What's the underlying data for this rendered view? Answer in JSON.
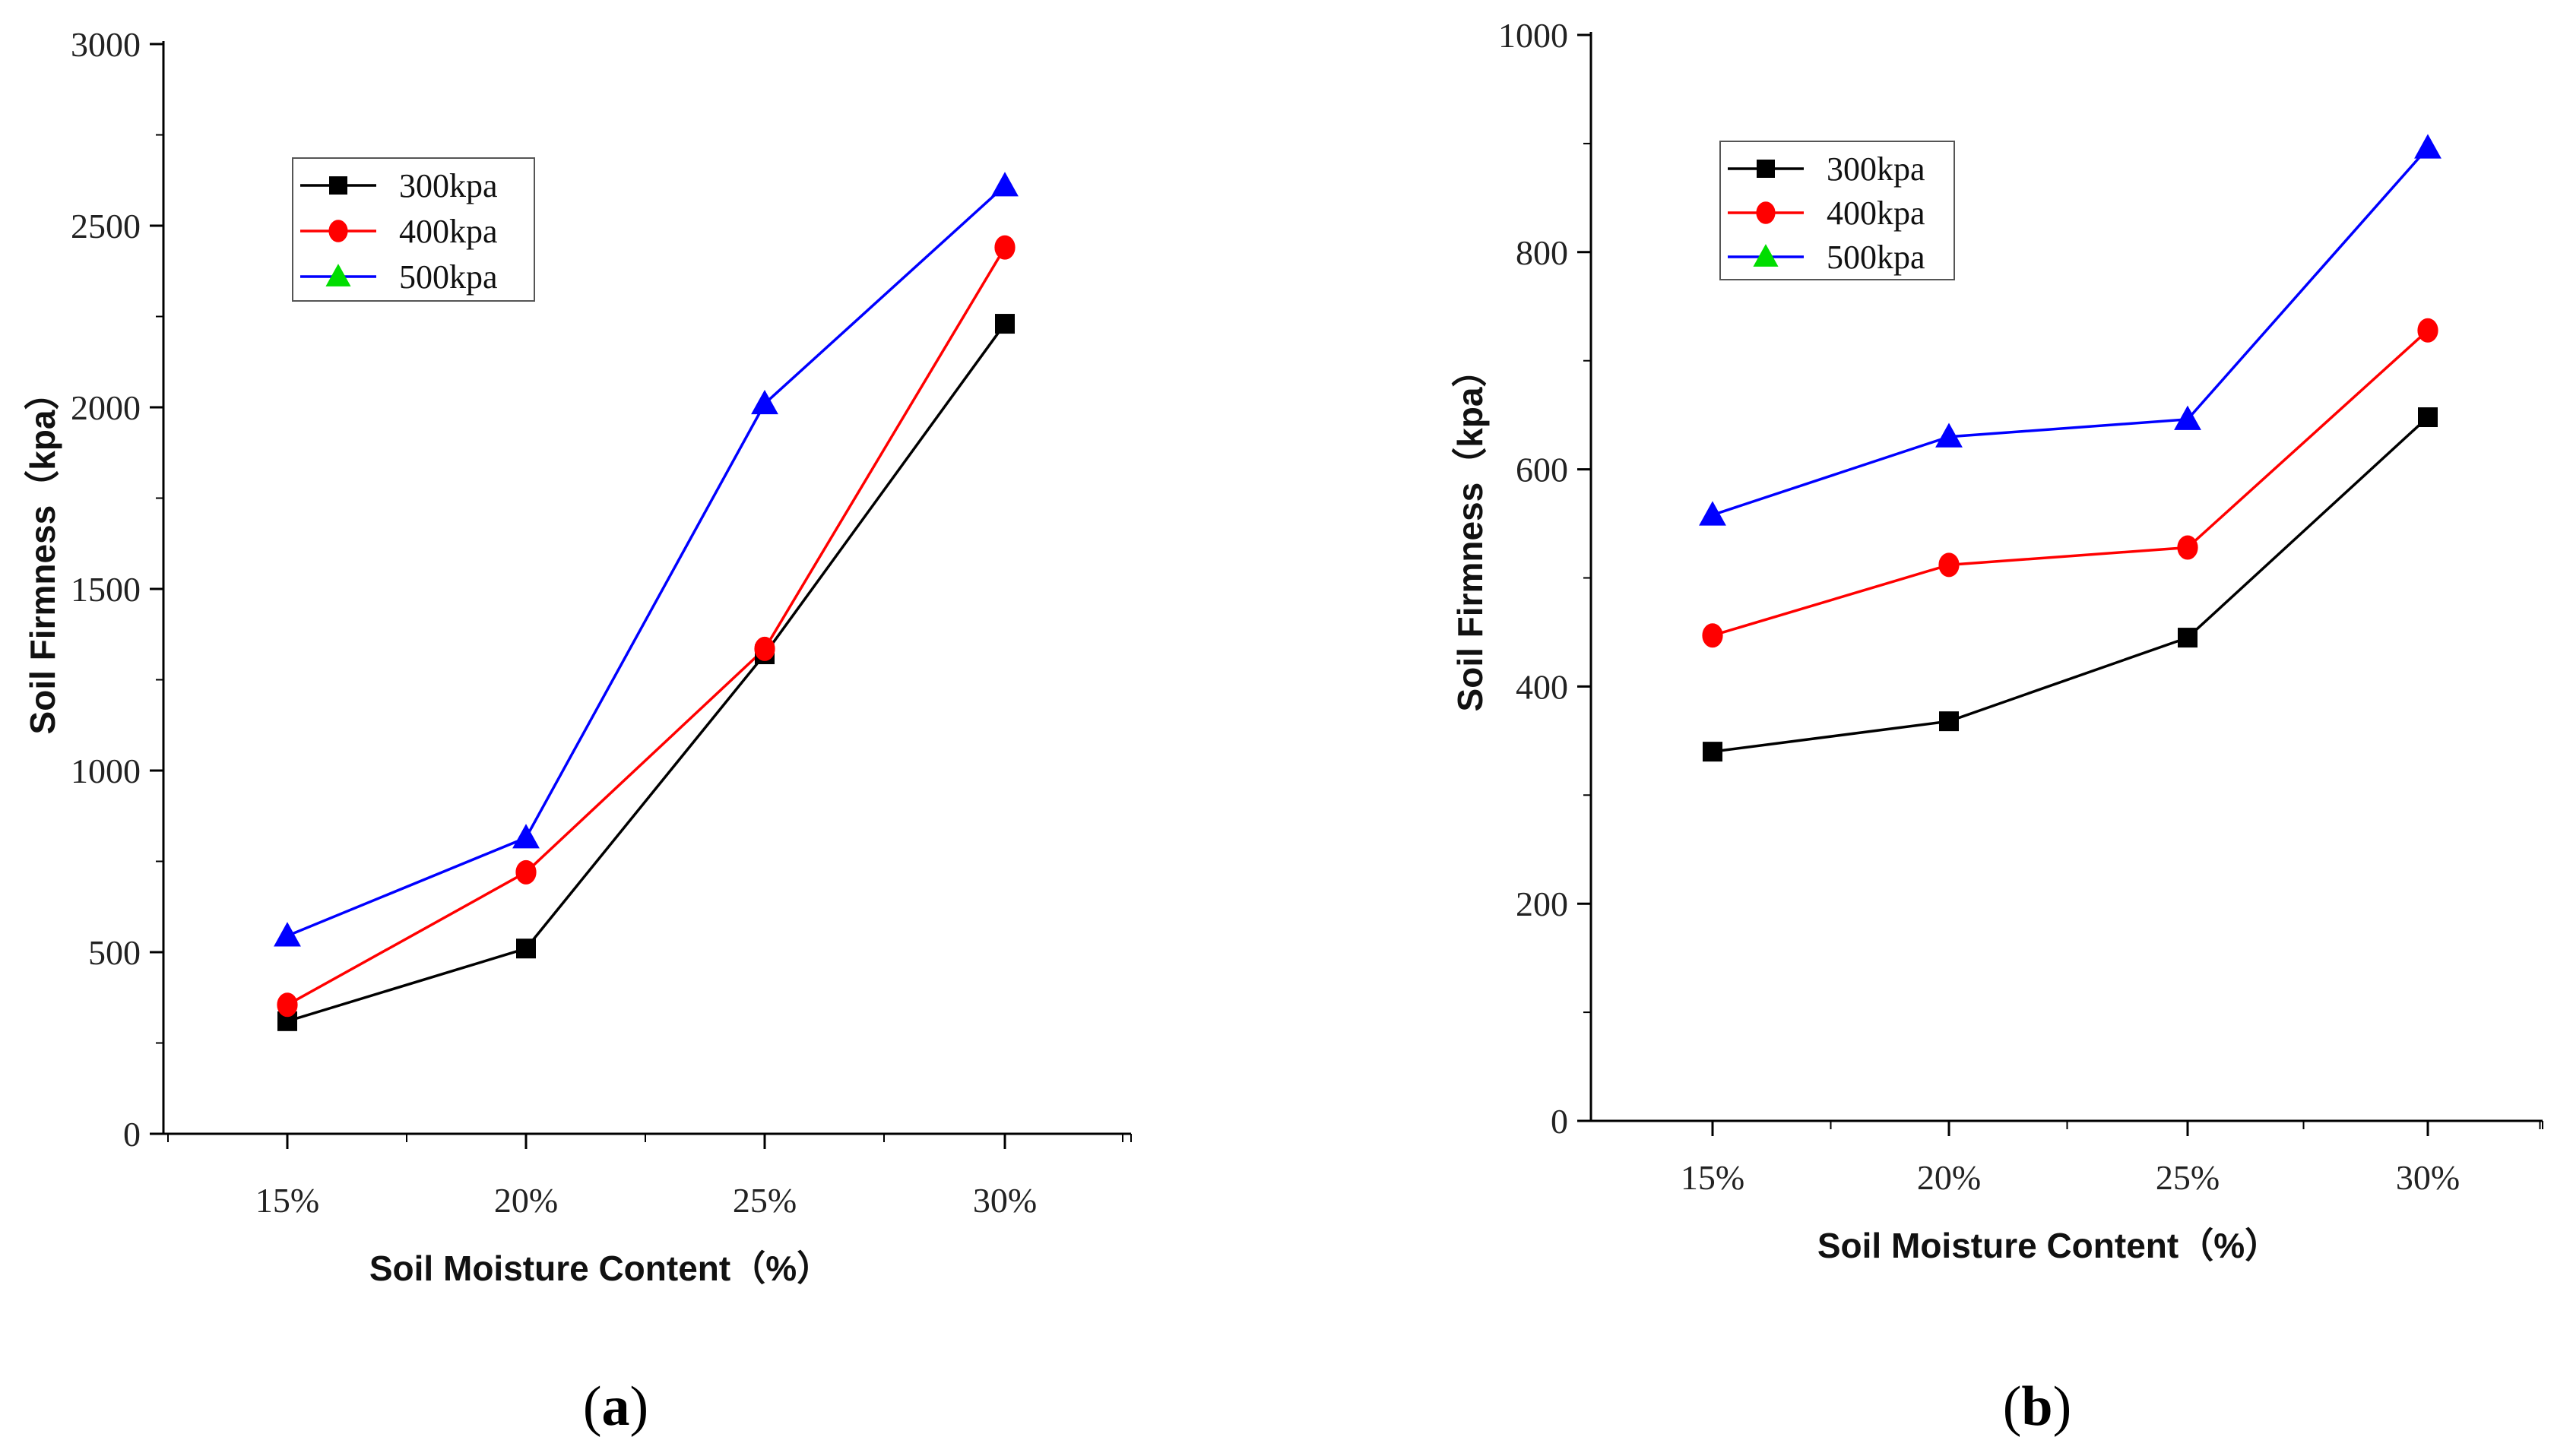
{
  "chart_data": [
    {
      "type": "line",
      "panel_label": "a",
      "panel_label_open": "(",
      "panel_label_close": ")",
      "xlabel": "Soil Moisture Content（%）",
      "ylabel": "Soil Firmness（kpa）",
      "categories": [
        "15%",
        "20%",
        "25%",
        "30%"
      ],
      "ylim": [
        0,
        3000
      ],
      "yticks": [
        0,
        500,
        1000,
        1500,
        2000,
        2500,
        3000
      ],
      "legend_position": "top-left",
      "series": [
        {
          "name": "300kpa",
          "color": "#000000",
          "marker": "square",
          "values": [
            310,
            510,
            1320,
            2230
          ]
        },
        {
          "name": "400kpa",
          "color": "#ff0000",
          "marker": "circle",
          "values": [
            355,
            720,
            1335,
            2440
          ]
        },
        {
          "name": "500kpa",
          "color": "#0000ff",
          "marker_fill": "#00dd00",
          "marker": "triangle",
          "values": [
            545,
            815,
            2010,
            2610
          ]
        }
      ]
    },
    {
      "type": "line",
      "panel_label": "b",
      "panel_label_open": "(",
      "panel_label_close": ")",
      "xlabel": "Soil Moisture Content（%）",
      "ylabel": "Soil Firmness（kpa）",
      "categories": [
        "15%",
        "20%",
        "25%",
        "30%"
      ],
      "ylim": [
        0,
        1000
      ],
      "yticks": [
        0,
        200,
        400,
        600,
        800,
        1000
      ],
      "legend_position": "top-left",
      "series": [
        {
          "name": "300kpa",
          "color": "#000000",
          "marker": "square",
          "values": [
            340,
            368,
            445,
            648
          ]
        },
        {
          "name": "400kpa",
          "color": "#ff0000",
          "marker": "circle",
          "values": [
            447,
            512,
            528,
            728
          ]
        },
        {
          "name": "500kpa",
          "color": "#0000ff",
          "marker_fill": "#00dd00",
          "marker": "triangle",
          "values": [
            558,
            630,
            646,
            896
          ]
        }
      ]
    }
  ]
}
